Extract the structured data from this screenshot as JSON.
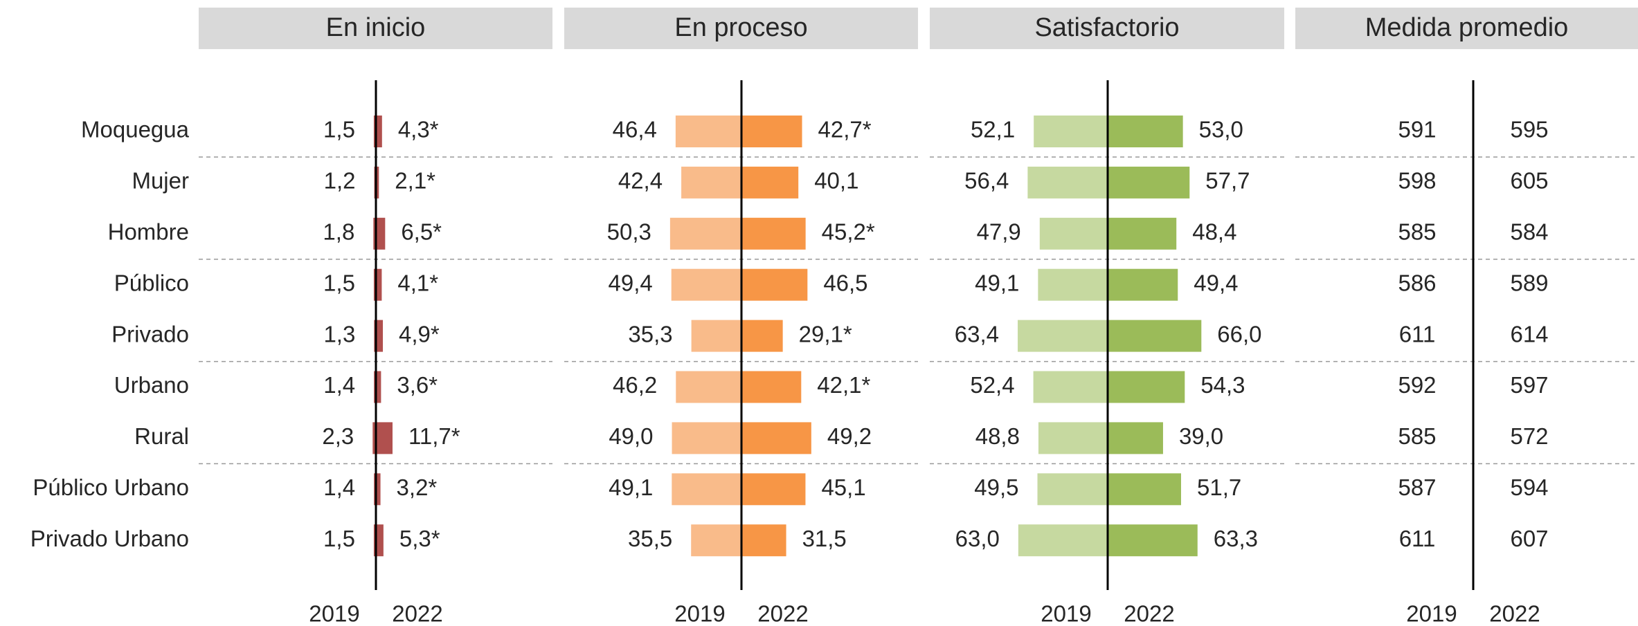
{
  "row_labels": [
    "Moquegua",
    "Mujer",
    "Hombre",
    "Público",
    "Privado",
    "Urbano",
    "Rural",
    "Público Urbano",
    "Privado Urbano"
  ],
  "chart_data": [
    {
      "type": "bar",
      "title": "En inicio",
      "series": [
        {
          "name": "2019",
          "color": "#b0504e",
          "values": [
            1.5,
            1.2,
            1.8,
            1.5,
            1.3,
            1.4,
            2.3,
            1.4,
            1.5
          ],
          "value_labels": [
            "1,5",
            "1,2",
            "1,8",
            "1,5",
            "1,3",
            "1,4",
            "2,3",
            "1,4",
            "1,5"
          ]
        },
        {
          "name": "2022",
          "color": "#b0504e",
          "values": [
            4.3,
            2.1,
            6.5,
            4.1,
            4.9,
            3.6,
            11.7,
            3.2,
            5.3
          ],
          "value_labels": [
            "4,3*",
            "2,1*",
            "6,5*",
            "4,1*",
            "4,9*",
            "3,6*",
            "11,7*",
            "3,2*",
            "5,3*"
          ]
        }
      ]
    },
    {
      "type": "bar",
      "title": "En proceso",
      "series": [
        {
          "name": "2019",
          "color": "#f9bb8a",
          "values": [
            46.4,
            42.4,
            50.3,
            49.4,
            35.3,
            46.2,
            49.0,
            49.1,
            35.5
          ],
          "value_labels": [
            "46,4",
            "42,4",
            "50,3",
            "49,4",
            "35,3",
            "46,2",
            "49,0",
            "49,1",
            "35,5"
          ]
        },
        {
          "name": "2022",
          "color": "#f79646",
          "values": [
            42.7,
            40.1,
            45.2,
            46.5,
            29.1,
            42.1,
            49.2,
            45.1,
            31.5
          ],
          "value_labels": [
            "42,7*",
            "40,1",
            "45,2*",
            "46,5",
            "29,1*",
            "42,1*",
            "49,2",
            "45,1",
            "31,5"
          ]
        }
      ]
    },
    {
      "type": "bar",
      "title": "Satisfactorio",
      "series": [
        {
          "name": "2019",
          "color": "#c6d9a0",
          "values": [
            52.1,
            56.4,
            47.9,
            49.1,
            63.4,
            52.4,
            48.8,
            49.5,
            63.0
          ],
          "value_labels": [
            "52,1",
            "56,4",
            "47,9",
            "49,1",
            "63,4",
            "52,4",
            "48,8",
            "49,5",
            "63,0"
          ]
        },
        {
          "name": "2022",
          "color": "#9bbb59",
          "values": [
            53.0,
            57.7,
            48.4,
            49.4,
            66.0,
            54.3,
            39.0,
            51.7,
            63.3
          ],
          "value_labels": [
            "53,0",
            "57,7",
            "48,4",
            "49,4",
            "66,0",
            "54,3",
            "39,0",
            "51,7",
            "63,3"
          ]
        }
      ]
    },
    {
      "type": "table",
      "title": "Medida promedio",
      "series": [
        {
          "name": "2019",
          "values": [
            591,
            598,
            585,
            586,
            611,
            592,
            585,
            587,
            611
          ]
        },
        {
          "name": "2022",
          "values": [
            595,
            605,
            584,
            589,
            614,
            597,
            572,
            594,
            607
          ]
        }
      ]
    }
  ]
}
